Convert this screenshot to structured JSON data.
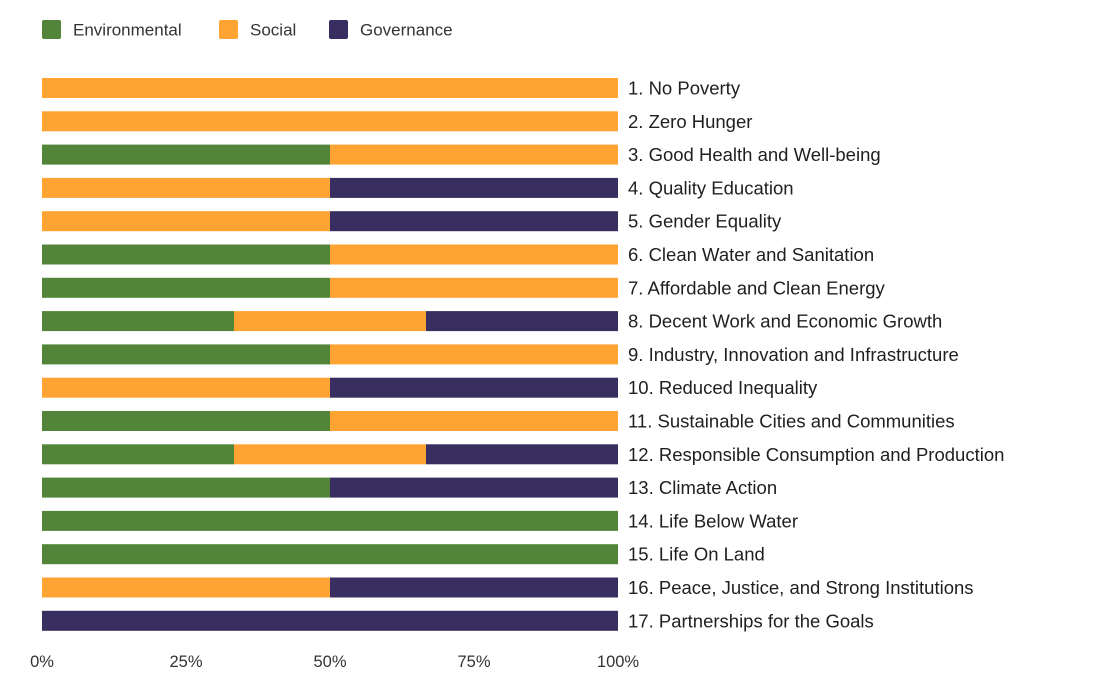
{
  "chart_data": {
    "type": "bar",
    "orientation": "horizontal",
    "stacked": true,
    "normalized": true,
    "title": "",
    "xlabel": "",
    "ylabel": "",
    "xlim": [
      0,
      100
    ],
    "grid": false,
    "legend_position": "top-left",
    "x_ticks": [
      "0%",
      "25%",
      "50%",
      "75%",
      "100%"
    ],
    "x_tick_values": [
      0,
      25,
      50,
      75,
      100
    ],
    "categories": [
      "1. No Poverty",
      "2. Zero Hunger",
      "3. Good Health and Well-being",
      "4. Quality Education",
      "5. Gender Equality",
      "6. Clean Water and Sanitation",
      "7. Affordable and Clean Energy",
      "8. Decent Work and Economic Growth",
      "9. Industry, Innovation and Infrastructure",
      "10. Reduced Inequality",
      "11. Sustainable Cities and Communities",
      "12. Responsible Consumption and Production",
      "13. Climate Action",
      "14. Life Below Water",
      "15. Life On Land",
      "16. Peace, Justice, and Strong Institutions",
      "17. Partnerships for the Goals"
    ],
    "series": [
      {
        "name": "Environmental",
        "color": "#528539",
        "values": [
          0,
          0,
          50,
          0,
          0,
          50,
          50,
          33.33,
          50,
          0,
          50,
          33.33,
          50,
          100,
          100,
          0,
          0
        ]
      },
      {
        "name": "Social",
        "color": "#FFA333",
        "values": [
          100,
          100,
          50,
          50,
          50,
          50,
          50,
          33.33,
          50,
          50,
          50,
          33.33,
          0,
          0,
          0,
          50,
          0
        ]
      },
      {
        "name": "Governance",
        "color": "#382E5F",
        "values": [
          0,
          0,
          0,
          50,
          50,
          0,
          0,
          33.33,
          0,
          50,
          0,
          33.33,
          50,
          0,
          0,
          50,
          100
        ]
      }
    ]
  }
}
